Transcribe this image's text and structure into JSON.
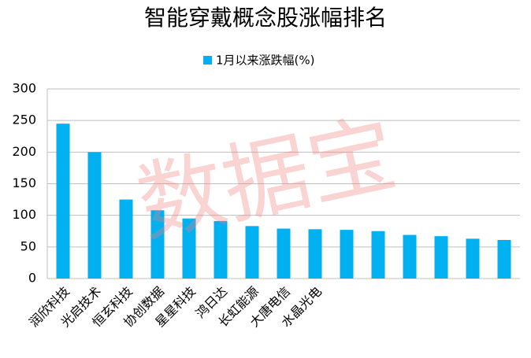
{
  "chart_data": {
    "type": "bar",
    "title": "智能穿戴概念股涨幅排名",
    "series": [
      {
        "name": "1月以来涨跌幅(%)",
        "color": "#00b0f0",
        "values": [
          245,
          200,
          125,
          108,
          95,
          91,
          83,
          79,
          78,
          77,
          75,
          69,
          67,
          63,
          61
        ]
      }
    ],
    "categories": [
      "润欣科技",
      "光启技术",
      "恒玄科技",
      "协创数据",
      "星星科技",
      "鸿日达",
      "长虹能源",
      "大唐电信",
      "水晶光电",
      null,
      null,
      null,
      null,
      null,
      null
    ],
    "ylim": [
      0,
      300
    ],
    "yticks": [
      0,
      50,
      100,
      150,
      200,
      250,
      300
    ],
    "grid": true,
    "watermark": "数据宝"
  }
}
